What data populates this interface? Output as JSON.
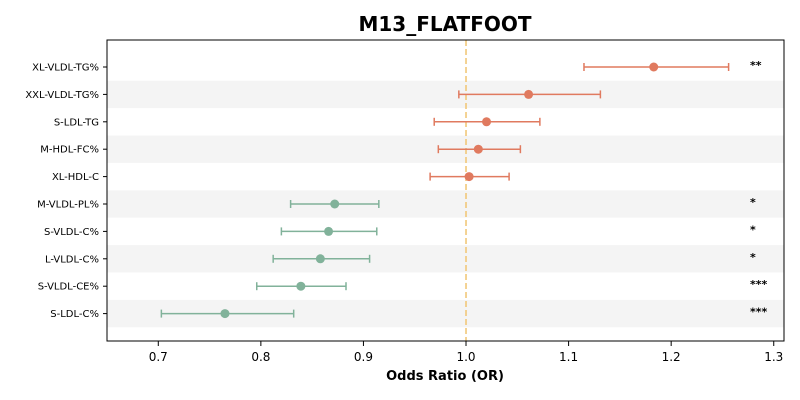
{
  "chart_data": {
    "type": "scatter",
    "title": "M13_FLATFOOT",
    "xlabel": "Odds Ratio (OR)",
    "ylabel": "",
    "xlim": [
      0.65,
      1.31
    ],
    "xticks": [
      0.7,
      0.8,
      0.9,
      1.0,
      1.1,
      1.2,
      1.3
    ],
    "xtick_labels": [
      "0.7",
      "0.8",
      "0.9",
      "1.0",
      "1.1",
      "1.2",
      "1.3"
    ],
    "reference_line": 1.0,
    "grid": false,
    "legend": "none",
    "colors": {
      "increase": "#e07a5f",
      "decrease": "#81b29a",
      "reference_line": "#f2c879",
      "band": "#f4f4f4"
    },
    "categories": [
      "XL-VLDL-TG%",
      "XXL-VLDL-TG%",
      "S-LDL-TG",
      "M-HDL-FC%",
      "XL-HDL-C",
      "M-VLDL-PL%",
      "S-VLDL-C%",
      "L-VLDL-C%",
      "S-VLDL-CE%",
      "S-LDL-C%"
    ],
    "or": [
      1.183,
      1.061,
      1.02,
      1.012,
      1.003,
      0.872,
      0.866,
      0.858,
      0.839,
      0.765
    ],
    "ci_low": [
      1.115,
      0.993,
      0.969,
      0.973,
      0.965,
      0.829,
      0.82,
      0.812,
      0.796,
      0.703
    ],
    "ci_high": [
      1.256,
      1.131,
      1.072,
      1.053,
      1.042,
      0.915,
      0.913,
      0.906,
      0.883,
      0.832
    ],
    "significance": [
      "**",
      "",
      "",
      "",
      "",
      "*",
      "*",
      "*",
      "***",
      "***"
    ]
  }
}
